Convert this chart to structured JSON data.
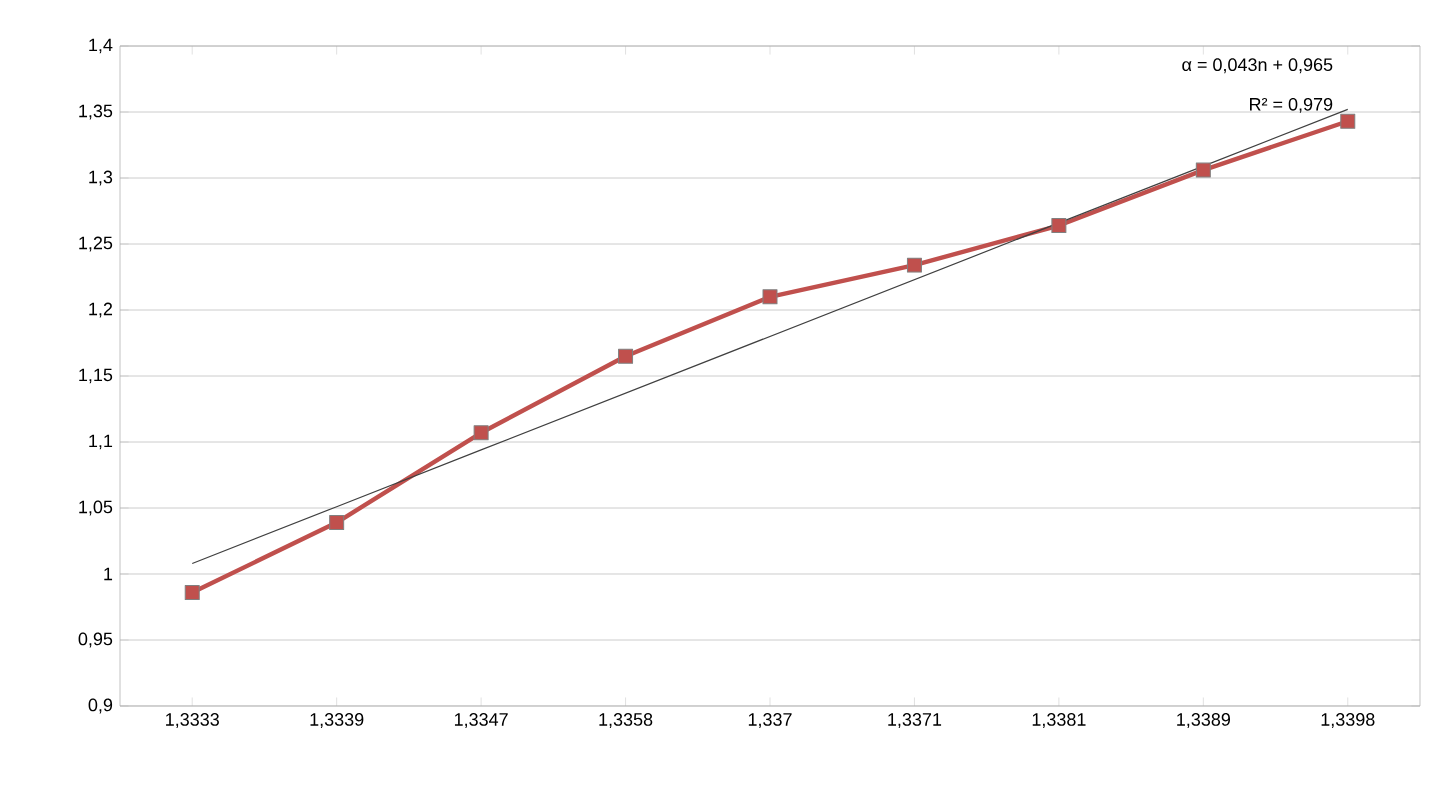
{
  "chart_data": {
    "type": "line",
    "categories": [
      "1,3333",
      "1,3339",
      "1,3347",
      "1,3358",
      "1,337",
      "1,3371",
      "1,3381",
      "1,3389",
      "1,3398"
    ],
    "series": [
      {
        "color": "#c0504d",
        "marker": "square",
        "values": [
          0.986,
          1.039,
          1.107,
          1.165,
          1.21,
          1.234,
          1.264,
          1.306,
          1.343
        ]
      },
      {
        "color": "#404040",
        "marker": "none",
        "values": [
          1.008,
          1.051,
          1.094,
          1.137,
          1.18,
          1.223,
          1.266,
          1.309,
          1.352
        ]
      }
    ],
    "ylim": [
      0.9,
      1.4
    ],
    "yticks": [
      {
        "value": 0.9,
        "label": "0,9"
      },
      {
        "value": 0.95,
        "label": "0,95"
      },
      {
        "value": 1,
        "label": "1"
      },
      {
        "value": 1.05,
        "label": "1,05"
      },
      {
        "value": 1.1,
        "label": "1,1"
      },
      {
        "value": 1.15,
        "label": "1,15"
      },
      {
        "value": 1.2,
        "label": "1,2"
      },
      {
        "value": 1.25,
        "label": "1,25"
      },
      {
        "value": 1.3,
        "label": "1,3"
      },
      {
        "value": 1.35,
        "label": "1,35"
      },
      {
        "value": 1.4,
        "label": "1,4"
      }
    ],
    "grid": "y",
    "annotations": [
      "α = 0,043n + 0,965",
      "R² = 0,979"
    ]
  }
}
